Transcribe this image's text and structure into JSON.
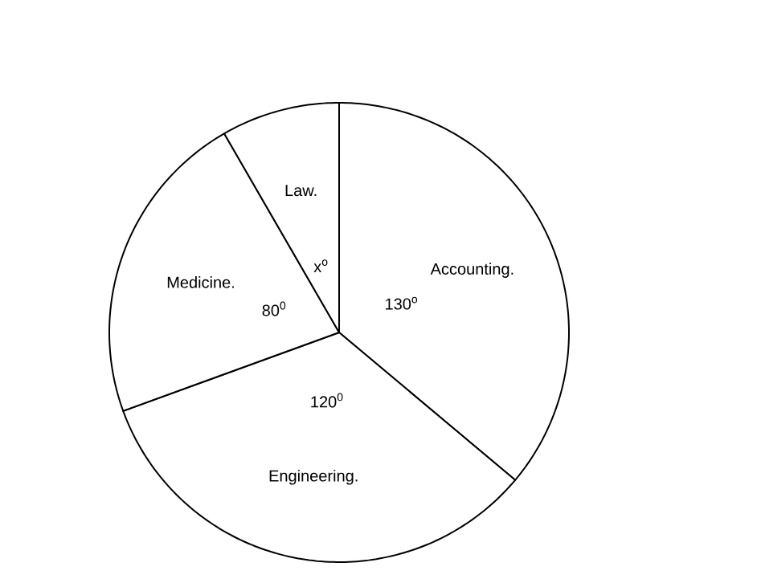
{
  "chart_data": {
    "type": "pie",
    "categories": [
      "Accounting.",
      "Engineering.",
      "Medicine.",
      "Law."
    ],
    "values": [
      130,
      120,
      80,
      30
    ],
    "value_labels": [
      "130$^{o}$",
      "120$^{0}$",
      "80$^{0}$",
      "x$^{o}$"
    ],
    "colors": [
      "#ffffff",
      "#ffffff",
      "#ffffff",
      "#ffffff"
    ]
  }
}
